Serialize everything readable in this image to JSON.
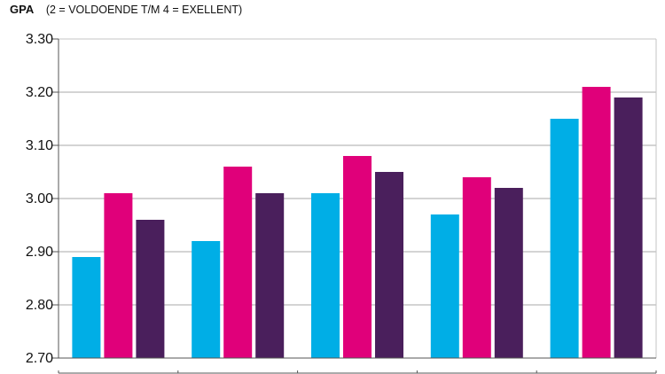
{
  "title": {
    "main": "GPA",
    "subtitle": "(2 = VOLDOENDE T/M 4 = EXELLENT)"
  },
  "colors": {
    "series": [
      "#00aee6",
      "#e0007a",
      "#4a1f5c"
    ],
    "grid": "#a8a8a8",
    "axis": "#555555",
    "frame": "#c4c4c4"
  },
  "chart_data": {
    "type": "bar",
    "title": "GPA",
    "subtitle": "(2 = VOLDOENDE T/M 4 = EXELLENT)",
    "xlabel": "",
    "ylabel": "",
    "ylim": [
      2.7,
      3.3
    ],
    "yticks": [
      "3.30",
      "3.20",
      "3.10",
      "3.00",
      "2.90",
      "2.80",
      "2.70"
    ],
    "grid": true,
    "legend": "none",
    "categories": [
      "",
      "",
      "",
      "",
      ""
    ],
    "series": [
      {
        "values": [
          2.89,
          2.92,
          3.01,
          2.97,
          3.15
        ]
      },
      {
        "values": [
          3.01,
          3.06,
          3.08,
          3.04,
          3.21
        ]
      },
      {
        "values": [
          2.96,
          3.01,
          3.05,
          3.02,
          3.19
        ]
      }
    ]
  }
}
